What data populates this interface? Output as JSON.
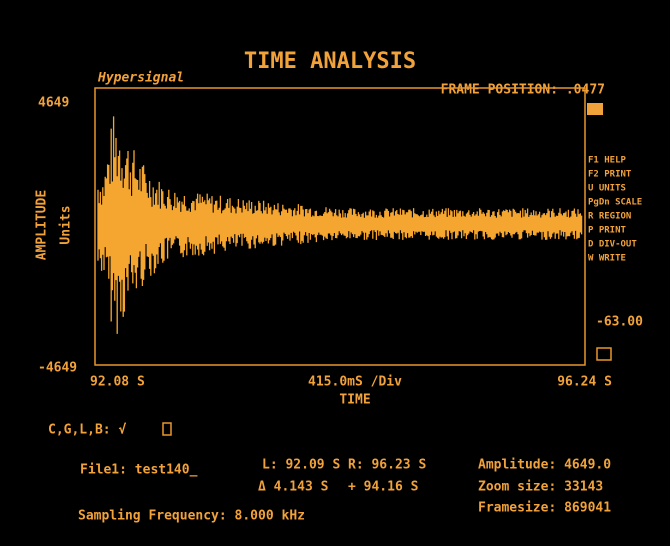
{
  "screen": {
    "title": "TIME ANALYSIS",
    "signal_name": "Hypersignal",
    "frame_position": "FRAME POSITION: .0477",
    "y_axis": {
      "label": "AMPLITUDE",
      "unit": "Units",
      "top": "4649",
      "bottom": "-4649"
    },
    "menu": [
      "F1 HELP",
      "F2 PRINT",
      "U UNITS",
      "PgDn SCALE",
      "R REGION",
      "P PRINT",
      "D DIV-OUT",
      "W WRITE"
    ],
    "right_value": "-63.00",
    "x_axis": {
      "start": "92.08 S",
      "division": "415.0mS /Div",
      "end": "96.24 S",
      "label": "TIME"
    },
    "cglb": "C,G,L,B: √",
    "file": "File1: test140_",
    "cursor_left": "L: 92.09 S",
    "cursor_right": "R: 96.23 S",
    "delta": "Δ 4.143 S",
    "plus": "+ 94.16 S",
    "amplitude": "Amplitude: 4649.0",
    "zoom_size": "Zoom size: 33143",
    "framesize": "Framesize: 869041",
    "sampling": "Sampling Frequency: 8.000 kHz"
  }
}
